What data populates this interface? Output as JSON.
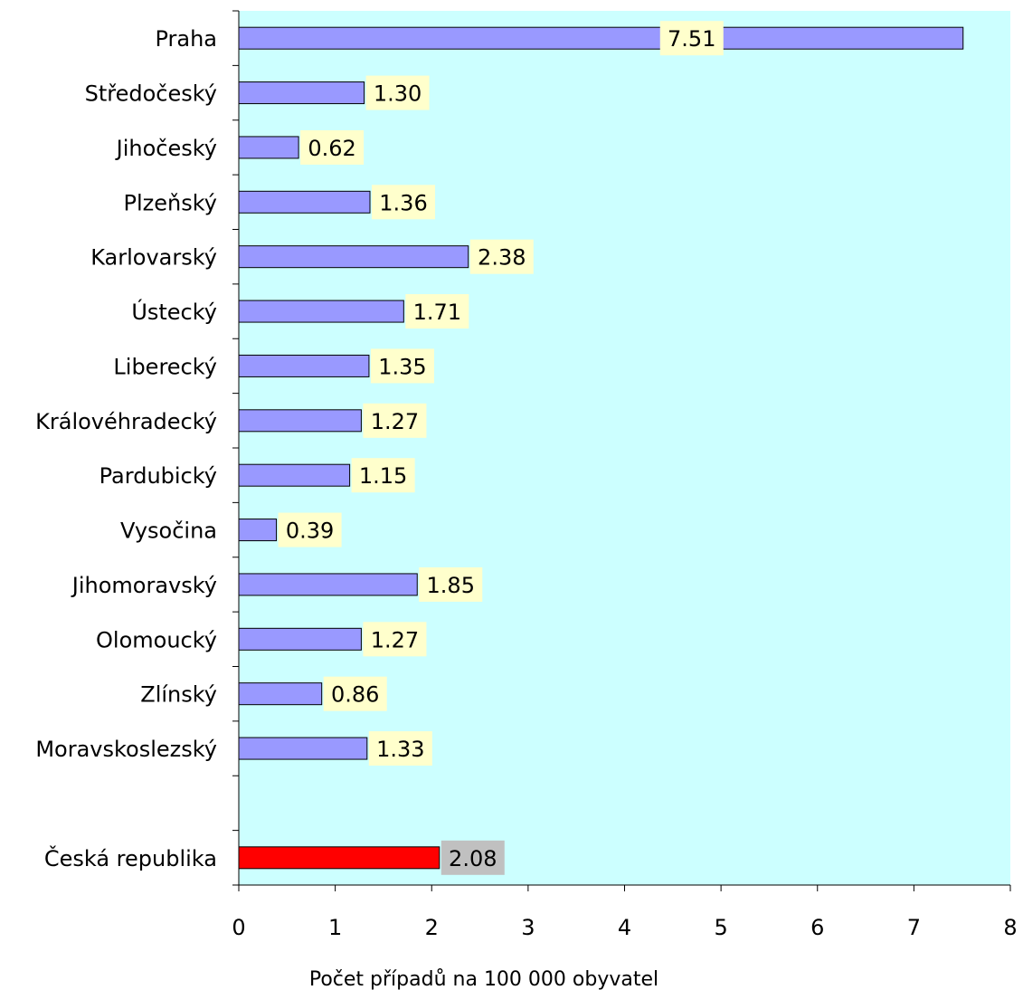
{
  "chart_data": {
    "type": "bar",
    "orientation": "horizontal",
    "categories": [
      "Praha",
      "Středočeský",
      "Jihočeský",
      "Plzeňský",
      "Karlovarský",
      "Ústecký",
      "Liberecký",
      "Královéhradecký",
      "Pardubický",
      "Vysočina",
      "Jihomoravský",
      "Olomoucký",
      "Zlínský",
      "Moravskoslezský",
      "",
      "Česká republika"
    ],
    "values": [
      7.51,
      1.3,
      0.62,
      1.36,
      2.38,
      1.71,
      1.35,
      1.27,
      1.15,
      0.39,
      1.85,
      1.27,
      0.86,
      1.33,
      null,
      2.08
    ],
    "data_labels": [
      "7.51",
      "1.30",
      "0.62",
      "1.36",
      "2.38",
      "1.71",
      "1.35",
      "1.27",
      "1.15",
      "0.39",
      "1.85",
      "1.27",
      "0.86",
      "1.33",
      "",
      "2.08"
    ],
    "highlight_index": 15,
    "xlabel": "Počet případů na 100 000 obyvatel",
    "ylabel": "",
    "title": "",
    "xlim": [
      0,
      8
    ],
    "xticks": [
      "0",
      "1",
      "2",
      "3",
      "4",
      "5",
      "6",
      "7",
      "8"
    ],
    "grid": false,
    "legend": "none",
    "colors": {
      "plot_background": "#ccffff",
      "bar": "#9999ff",
      "bar_highlight": "#ff0000",
      "label_background": "#ffffcc",
      "label_background_highlight": "#c0c0c0",
      "bar_border": "#000000"
    }
  }
}
